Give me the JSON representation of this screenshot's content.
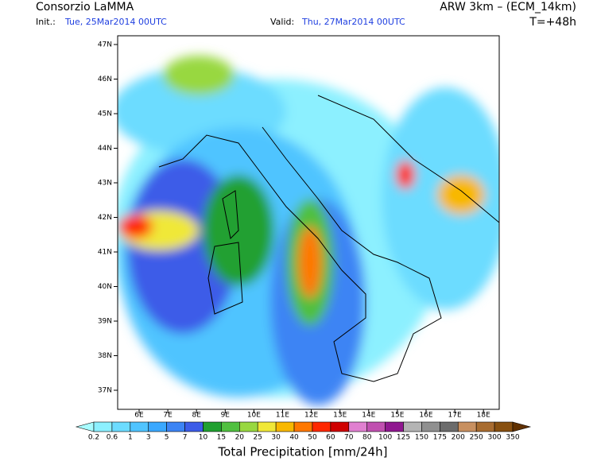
{
  "header": {
    "title": "Consorzio LaMMA",
    "model": "ARW 3km – (ECM_14km)",
    "init_label": "Init.:",
    "init_time": "Tue, 25Mar2014 00UTC",
    "valid_label": "Valid:",
    "valid_time": "Thu, 27Mar2014 00UTC",
    "lead_time": "T=+48h"
  },
  "map": {
    "lat_labels": [
      "47N",
      "46N",
      "45N",
      "44N",
      "43N",
      "42N",
      "41N",
      "40N",
      "39N",
      "38N",
      "37N"
    ],
    "lon_labels": [
      "6E",
      "7E",
      "8E",
      "9E",
      "10E",
      "11E",
      "12E",
      "13E",
      "14E",
      "15E",
      "16E",
      "17E",
      "18E"
    ]
  },
  "colorbar": {
    "label": "Total Precipitation [mm/24h]",
    "levels": [
      0.2,
      0.6,
      1,
      3,
      5,
      7,
      10,
      15,
      20,
      25,
      30,
      40,
      50,
      60,
      70,
      80,
      100,
      125,
      150,
      175,
      200,
      250,
      300,
      350
    ],
    "colors": [
      "#a8fcff",
      "#8cf0ff",
      "#6cdcff",
      "#50c4ff",
      "#3aa8ff",
      "#3c84f4",
      "#3c5ce8",
      "#20a030",
      "#50c040",
      "#98d840",
      "#f0e838",
      "#f8b800",
      "#ff7800",
      "#ff2800",
      "#d00000",
      "#e080d0",
      "#c050b0",
      "#901890",
      "#b4b4b4",
      "#909090",
      "#6c6c6c",
      "#c89060",
      "#a86c30",
      "#885010",
      "#603000"
    ]
  }
}
